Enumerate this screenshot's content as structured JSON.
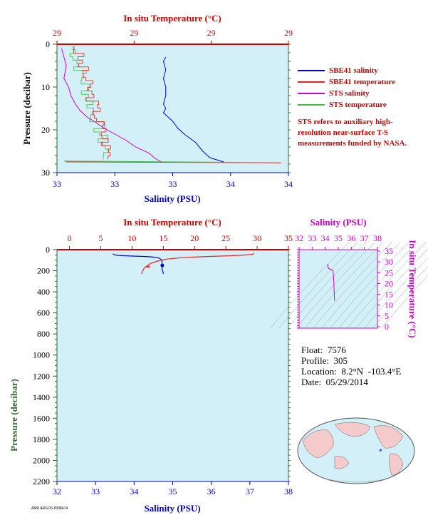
{
  "chart_data": [
    {
      "type": "line",
      "panel": "top",
      "title": "",
      "top_axis_label": "In situ Temperature (°C)",
      "bottom_axis_label": "Salinity (PSU)",
      "left_axis_label": "Pressure (decibar)",
      "top_ticks": [
        "29",
        "29",
        "29",
        "29"
      ],
      "bottom_ticks": [
        "33",
        "33",
        "33",
        "34",
        "34"
      ],
      "left_ticks": [
        "0",
        "10",
        "20",
        "30"
      ],
      "ylim": [
        0,
        30
      ],
      "xlim_salinity": [
        33.0,
        34.0
      ],
      "series": [
        {
          "name": "SBE41 salinity",
          "color": "#0000cc",
          "x": [
            33.47,
            33.46,
            33.47,
            33.46,
            33.47,
            33.47,
            33.46,
            33.47,
            33.46,
            33.48,
            33.5,
            33.52,
            33.55,
            33.6,
            33.63,
            33.66,
            33.72
          ],
          "y": [
            3,
            4,
            6,
            8,
            10,
            12,
            14,
            15,
            16,
            17,
            18,
            19.5,
            21,
            23,
            25,
            26.5,
            27.5
          ]
        },
        {
          "name": "SBE41 temperature",
          "color": "#ee2222"
        },
        {
          "name": "STS salinity",
          "color": "#cc00cc",
          "x": [
            33.02,
            33.03,
            33.04,
            33.03,
            33.05,
            33.06,
            33.08,
            33.1,
            33.13,
            33.16,
            33.2,
            33.25,
            33.3,
            33.34,
            33.4,
            33.42,
            33.45
          ],
          "y": [
            1,
            3,
            5,
            8,
            10,
            12,
            14,
            15.5,
            17,
            18,
            19.5,
            21,
            22.5,
            24,
            25.5,
            26.5,
            27.5
          ]
        },
        {
          "name": "STS temperature",
          "color": "#44bb44"
        }
      ]
    },
    {
      "type": "line",
      "panel": "bottom",
      "top_axis_label": "In situ Temperature (°C)",
      "bottom_axis_label": "Salinity (PSU)",
      "left_axis_label": "Pressure (decibar)",
      "top_ticks": [
        "0",
        "5",
        "10",
        "15",
        "20",
        "25",
        "30",
        "35"
      ],
      "bottom_ticks": [
        "32",
        "33",
        "34",
        "35",
        "36",
        "37",
        "38"
      ],
      "left_ticks": [
        "0",
        "200",
        "400",
        "600",
        "800",
        "1000",
        "1200",
        "1400",
        "1600",
        "1800",
        "2000",
        "2200"
      ],
      "ylim": [
        0,
        2200
      ],
      "xlim_temperature": [
        -2,
        35
      ],
      "xlim_salinity": [
        32,
        38
      ],
      "series": [
        {
          "name": "salinity",
          "color": "#0000cc",
          "x": [
            33.45,
            33.5,
            33.6,
            33.9,
            34.3,
            34.5,
            34.65,
            34.72,
            34.73,
            34.72,
            34.74,
            34.76
          ],
          "y": [
            40,
            50,
            55,
            60,
            65,
            70,
            80,
            100,
            150,
            180,
            200,
            230
          ]
        },
        {
          "name": "temperature",
          "color": "#ee2222",
          "x": [
            29.5,
            29.2,
            27,
            22,
            18,
            15.5,
            14,
            13,
            12.5,
            12,
            11.8,
            11.5
          ],
          "y": [
            35,
            45,
            55,
            65,
            75,
            90,
            110,
            130,
            150,
            170,
            190,
            230
          ]
        }
      ]
    },
    {
      "type": "line",
      "panel": "ts-inset",
      "top_axis_label": "Salinity (PSU)",
      "right_axis_label": "In situ Temperature (°C)",
      "top_ticks": [
        "32",
        "33",
        "34",
        "35",
        "36",
        "37",
        "38"
      ],
      "right_ticks": [
        "35",
        "30",
        "25",
        "20",
        "15",
        "10",
        "5",
        "0"
      ],
      "series": [
        {
          "name": "T-S",
          "color": "#cc00cc",
          "x": [
            34.2,
            34.2,
            34.25,
            34.6,
            34.65,
            34.68,
            34.7,
            34.72
          ],
          "y": [
            29,
            28,
            27,
            26,
            22,
            17,
            14,
            12
          ]
        }
      ]
    }
  ],
  "legend": [
    {
      "label": "SBE41 salinity",
      "color": "#0000cc"
    },
    {
      "label": "SBE41 temperature",
      "color": "#ee2222"
    },
    {
      "label": "STS salinity",
      "color": "#cc00cc"
    },
    {
      "label": "STS temperature",
      "color": "#44bb44"
    }
  ],
  "note": "STS refers to auxiliary high-resolution near-surface T-S measurements funded by NASA.",
  "float_info": {
    "float": "Float:  7576",
    "profile": "Profile:  305",
    "location": "Location:  8.2°N  -103.4°E",
    "date": "Date:  05/29/2014"
  },
  "footer": "AMR ARGOS 8308474",
  "colors": {
    "plot_bg": "#d3f0f8",
    "temp": "#ee2222",
    "sal": "#0000cc",
    "axis_green": "#336633",
    "magenta": "#cc00cc"
  }
}
